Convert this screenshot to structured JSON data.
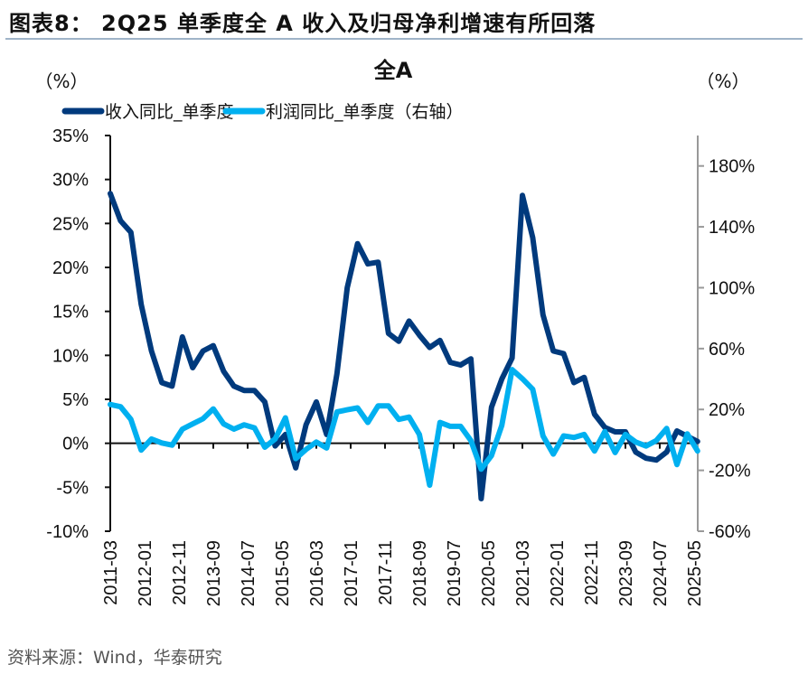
{
  "header": {
    "title": "图表8： 2Q25 单季度全 A 收入及归母净利增速有所回落"
  },
  "footer": {
    "source": "资料来源：Wind，华泰研究"
  },
  "chart_data": {
    "type": "line",
    "title": "全A",
    "ylabel_left": "（%）",
    "ylabel_right": "（%）",
    "grid": false,
    "legend_position": "top",
    "y_left": {
      "range": [
        -10,
        35
      ],
      "ticks": [
        -10,
        -5,
        0,
        5,
        10,
        15,
        20,
        25,
        30,
        35
      ],
      "tick_labels": [
        "-10%",
        "-5%",
        "0%",
        "5%",
        "10%",
        "15%",
        "20%",
        "25%",
        "30%",
        "35%"
      ]
    },
    "y_right": {
      "range": [
        -60,
        200
      ],
      "ticks": [
        -60,
        -20,
        20,
        60,
        100,
        140,
        180
      ],
      "tick_labels": [
        "-60%",
        "-20%",
        "20%",
        "60%",
        "100%",
        "140%",
        "180%"
      ]
    },
    "x_tick_labels": [
      "2011-03",
      "2012-01",
      "2012-11",
      "2013-09",
      "2014-07",
      "2015-05",
      "2016-03",
      "2017-01",
      "2017-11",
      "2018-09",
      "2019-07",
      "2020-05",
      "2021-03",
      "2022-01",
      "2022-11",
      "2023-09",
      "2024-07",
      "2025-05"
    ],
    "x": [
      "2011-03",
      "2011-06",
      "2011-09",
      "2011-12",
      "2012-03",
      "2012-06",
      "2012-09",
      "2012-12",
      "2013-03",
      "2013-06",
      "2013-09",
      "2013-12",
      "2014-03",
      "2014-06",
      "2014-09",
      "2014-12",
      "2015-03",
      "2015-06",
      "2015-09",
      "2015-12",
      "2016-03",
      "2016-06",
      "2016-09",
      "2016-12",
      "2017-03",
      "2017-06",
      "2017-09",
      "2017-12",
      "2018-03",
      "2018-06",
      "2018-09",
      "2018-12",
      "2019-03",
      "2019-06",
      "2019-09",
      "2019-12",
      "2020-03",
      "2020-06",
      "2020-09",
      "2020-12",
      "2021-03",
      "2021-06",
      "2021-09",
      "2021-12",
      "2022-03",
      "2022-06",
      "2022-09",
      "2022-12",
      "2023-03",
      "2023-06",
      "2023-09",
      "2023-12",
      "2024-03",
      "2024-06",
      "2024-09",
      "2024-12",
      "2025-03",
      "2025-06"
    ],
    "series": [
      {
        "name": "收入同比_单季度",
        "axis": "left",
        "color": "#003A7D",
        "values": [
          28.4,
          25.3,
          24.0,
          15.8,
          10.5,
          6.9,
          6.5,
          12.1,
          8.6,
          10.5,
          11.1,
          8.2,
          6.5,
          6.0,
          6.0,
          4.7,
          -0.3,
          1.0,
          -2.8,
          2.1,
          4.7,
          1.0,
          7.9,
          17.7,
          22.7,
          20.4,
          20.6,
          12.5,
          11.6,
          13.9,
          12.3,
          10.9,
          11.7,
          9.2,
          8.9,
          9.6,
          -6.3,
          4.1,
          7.3,
          9.7,
          28.2,
          23.4,
          14.6,
          10.5,
          10.2,
          6.9,
          7.5,
          3.3,
          1.8,
          1.3,
          1.3,
          -1.0,
          -1.7,
          -1.9,
          -1.0,
          1.4,
          0.8,
          0.2
        ]
      },
      {
        "name": "利润同比_单季度（右轴）",
        "axis": "right",
        "color": "#00B0F0",
        "values": [
          23.3,
          21.8,
          13.5,
          -6.7,
          0.6,
          -2.0,
          -3.4,
          7.1,
          10.5,
          13.9,
          20.4,
          10.5,
          7.1,
          9.9,
          7.9,
          -4.8,
          0.6,
          14.5,
          -12.3,
          -6.3,
          -1.4,
          -5.3,
          18.4,
          19.8,
          21.0,
          11.5,
          22.4,
          22.4,
          13.5,
          15.0,
          3.6,
          -29.7,
          11.5,
          8.9,
          8.9,
          -0.4,
          -19.2,
          -10.3,
          9.5,
          46.2,
          40.2,
          33.3,
          2.6,
          -9.3,
          2.6,
          1.6,
          3.6,
          -7.3,
          5.5,
          -8.3,
          3.6,
          -1.4,
          -4.0,
          -0.4,
          7.5,
          -16.2,
          4.0,
          -7.3
        ]
      }
    ]
  }
}
